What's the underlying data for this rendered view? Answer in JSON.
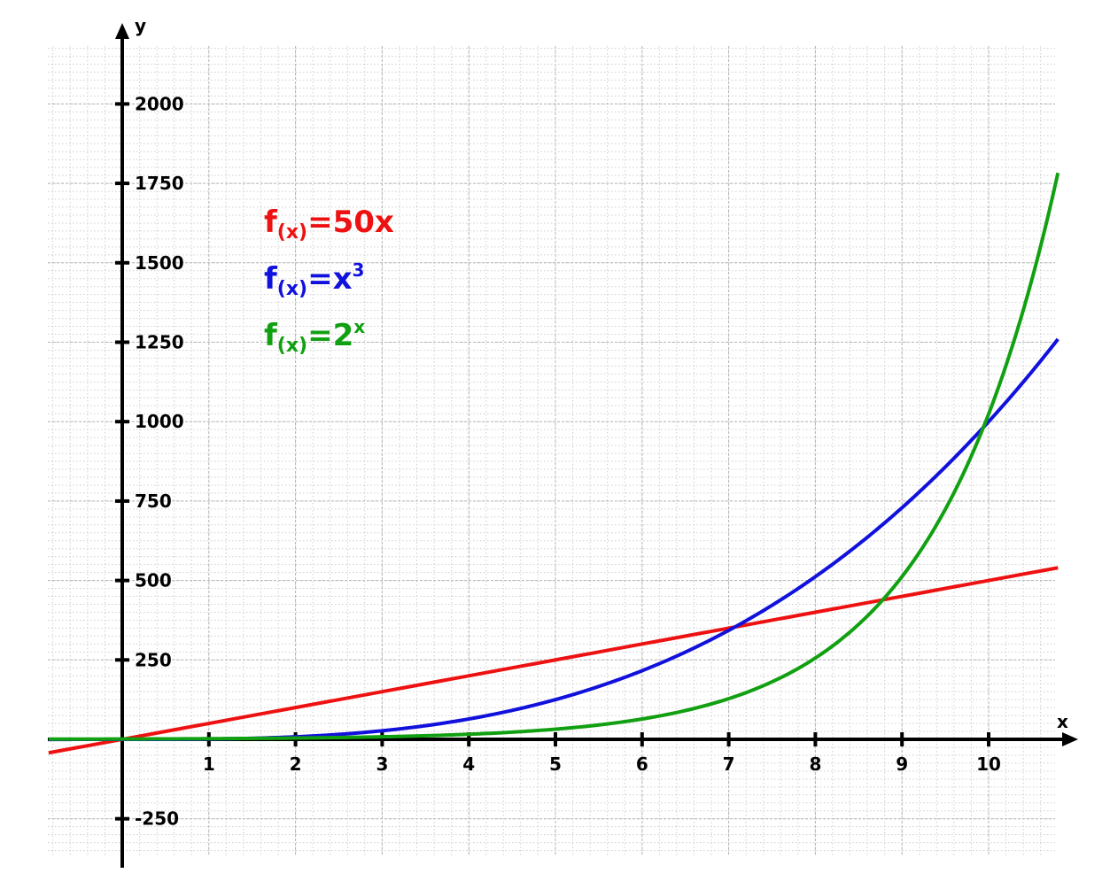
{
  "chart_data": {
    "type": "line",
    "xlabel": "x",
    "ylabel": "y",
    "xlim": [
      -0.85,
      10.8
    ],
    "ylim": [
      -400,
      2240
    ],
    "grid": true,
    "x_ticks": [
      1,
      2,
      3,
      4,
      5,
      6,
      7,
      8,
      9,
      10
    ],
    "y_ticks": [
      -250,
      250,
      500,
      750,
      1000,
      1250,
      1500,
      1750,
      2000
    ],
    "legend_placement": "top-left",
    "series": [
      {
        "color": "#ee1111",
        "legend": {
          "base": "f",
          "sub": "(x)",
          "rhs": "=50x",
          "sup": ""
        },
        "x": [
          -0.85,
          0,
          1,
          2,
          3,
          4,
          5,
          6,
          7,
          8,
          9,
          10,
          10.8
        ],
        "y": [
          -42.5,
          0,
          50,
          100,
          150,
          200,
          250,
          300,
          350,
          400,
          450,
          500,
          540
        ]
      },
      {
        "color": "#1111dd",
        "legend": {
          "base": "f",
          "sub": "(x)",
          "rhs": "=x",
          "sup": "3"
        },
        "x": [
          -0.85,
          0,
          1,
          2,
          3,
          4,
          5,
          6,
          7,
          8,
          9,
          10,
          10.8
        ],
        "y": [
          -0.6,
          0,
          1,
          8,
          27,
          64,
          125,
          216,
          343,
          512,
          729,
          1000,
          1260
        ]
      },
      {
        "color": "#11a011",
        "legend": {
          "base": "f",
          "sub": "(x)",
          "rhs": "=2",
          "sup": "x"
        },
        "x": [
          -0.85,
          0,
          1,
          2,
          3,
          4,
          5,
          6,
          7,
          8,
          9,
          10,
          10.8
        ],
        "y": [
          0.55,
          1,
          2,
          4,
          8,
          16,
          32,
          64,
          128,
          256,
          512,
          1024,
          1783
        ]
      }
    ]
  }
}
